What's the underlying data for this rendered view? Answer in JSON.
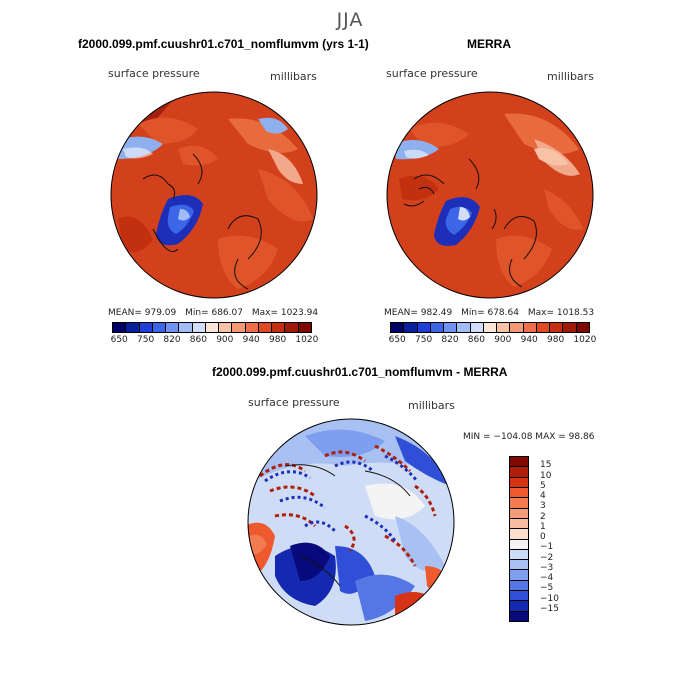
{
  "season": "JJA",
  "colors": {
    "ocean_red": "#d2401c",
    "land_red": "#e0542a",
    "dark_red": "#a3200e",
    "blue_dark": "#1d2fb8",
    "blue_light": "#8eb0ee"
  },
  "panels": [
    {
      "title": "f2000.099.pmf.cuushr01.c701_nomflumvm (yrs 1-1)",
      "variable": "surface pressure",
      "units": "millibars",
      "stats": {
        "mean": "MEAN= 979.09",
        "min": "Min= 686.07",
        "max": "Max= 1023.94"
      },
      "colorbar": {
        "ticks": [
          "650",
          "750",
          "820",
          "860",
          "900",
          "940",
          "980",
          "1020"
        ],
        "colors": [
          "#000066",
          "#0a1f9a",
          "#1d3fd6",
          "#3b66e6",
          "#6e93f0",
          "#a2bdf6",
          "#d2def9",
          "#fbe5d6",
          "#f7c2a6",
          "#f39a73",
          "#ee6f4a",
          "#e04a23",
          "#c3300f",
          "#a01a08",
          "#7f0a00"
        ]
      }
    },
    {
      "title": "MERRA",
      "variable": "surface pressure",
      "units": "millibars",
      "stats": {
        "mean": "MEAN= 982.49",
        "min": "Min= 678.64",
        "max": "Max= 1018.53"
      },
      "colorbar": {
        "ticks": [
          "650",
          "750",
          "820",
          "860",
          "900",
          "940",
          "980",
          "1020"
        ],
        "colors": [
          "#000066",
          "#0a1f9a",
          "#1d3fd6",
          "#3b66e6",
          "#6e93f0",
          "#a2bdf6",
          "#d2def9",
          "#fbe5d6",
          "#f7c2a6",
          "#f39a73",
          "#ee6f4a",
          "#e04a23",
          "#c3300f",
          "#a01a08",
          "#7f0a00"
        ]
      }
    },
    {
      "title": "f2000.099.pmf.cuushr01.c701_nomflumvm - MERRA",
      "variable": "surface pressure",
      "units": "millibars",
      "minmax": "MIN = −104.08  MAX =  98.86",
      "colorbar": {
        "ticks": [
          "15",
          "10",
          "5",
          "4",
          "3",
          "2",
          "1",
          "0",
          "−1",
          "−2",
          "−3",
          "−4",
          "−5",
          "−10",
          "−15"
        ],
        "colors": [
          "#7f0a00",
          "#b01e08",
          "#d63415",
          "#ee5a2e",
          "#f27b52",
          "#f49b78",
          "#f7bda1",
          "#fbe0cf",
          "#f4f4f4",
          "#cfdcf6",
          "#a9c1f2",
          "#7e9ef0",
          "#5577e6",
          "#2f4fd6",
          "#1529b0",
          "#070a7a"
        ]
      }
    }
  ]
}
